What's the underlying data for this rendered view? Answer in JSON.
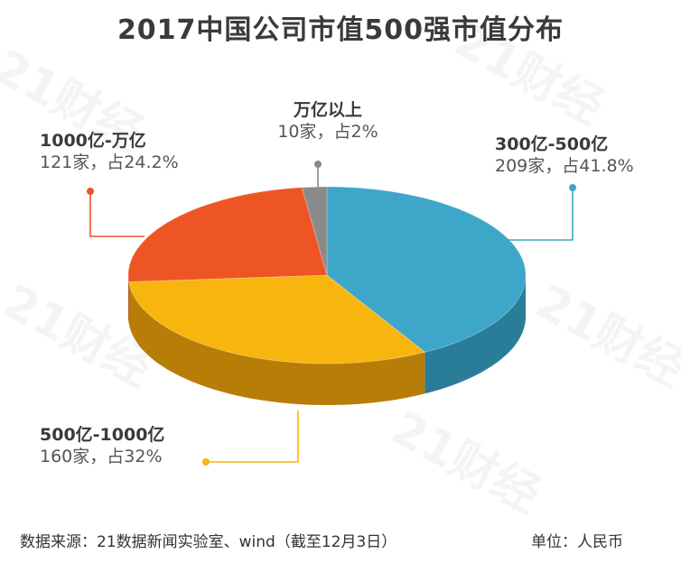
{
  "title": "2017中国公司市值500强市值分布",
  "watermark": "21财经",
  "chart_data": {
    "type": "pie",
    "title": "2017中国公司市值500强市值分布",
    "slices": [
      {
        "label": "300亿-500亿",
        "count": "209家",
        "share": "占41.8%",
        "value": 41.8,
        "color": "#3ea6c8",
        "side": "#2a7d99"
      },
      {
        "label": "500亿-1000亿",
        "count": "160家",
        "share": "占32%",
        "value": 32,
        "color": "#f8b50d",
        "side": "#b77d06"
      },
      {
        "label": "1000亿-万亿",
        "count": "121家",
        "share": "占24.2%",
        "value": 24.2,
        "color": "#ee5524",
        "side": "#a93a14"
      },
      {
        "label": "万亿以上",
        "count": "10家",
        "share": "占2%",
        "value": 2,
        "color": "#8a8a8a",
        "side": "#5c5c5c"
      }
    ]
  },
  "footer": {
    "source": "数据来源：21数据新闻实验室、wind（截至12月3日）",
    "unit": "单位：人民币"
  }
}
